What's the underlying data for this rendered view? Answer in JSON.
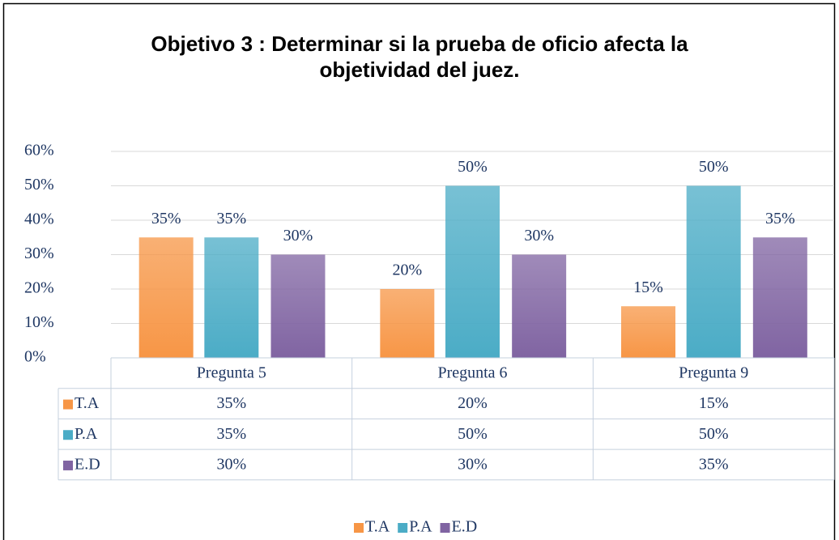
{
  "chart_data": {
    "type": "bar",
    "title": "Objetivo 3 : Determinar si la prueba de oficio afecta la objetividad del juez.",
    "categories": [
      "Pregunta 5",
      "Pregunta 6",
      "Pregunta 9"
    ],
    "series": [
      {
        "name": "T.A",
        "color": "#f79646",
        "values": [
          35,
          20,
          15
        ],
        "value_labels": [
          "35%",
          "20%",
          "15%"
        ]
      },
      {
        "name": "P.A",
        "color": "#4bacc6",
        "values": [
          35,
          50,
          50
        ],
        "value_labels": [
          "35%",
          "50%",
          "50%"
        ]
      },
      {
        "name": "E.D",
        "color": "#8064a2",
        "values": [
          30,
          30,
          35
        ],
        "value_labels": [
          "30%",
          "30%",
          "35%"
        ]
      }
    ],
    "ylim": [
      0,
      60
    ],
    "yticks": [
      {
        "value": 0,
        "label": "0%"
      },
      {
        "value": 10,
        "label": "10%"
      },
      {
        "value": 20,
        "label": "20%"
      },
      {
        "value": 30,
        "label": "30%"
      },
      {
        "value": 40,
        "label": "40%"
      },
      {
        "value": 50,
        "label": "50%"
      },
      {
        "value": 60,
        "label": "60%"
      }
    ],
    "grid": true,
    "legend": "bottom",
    "data_table": true
  }
}
